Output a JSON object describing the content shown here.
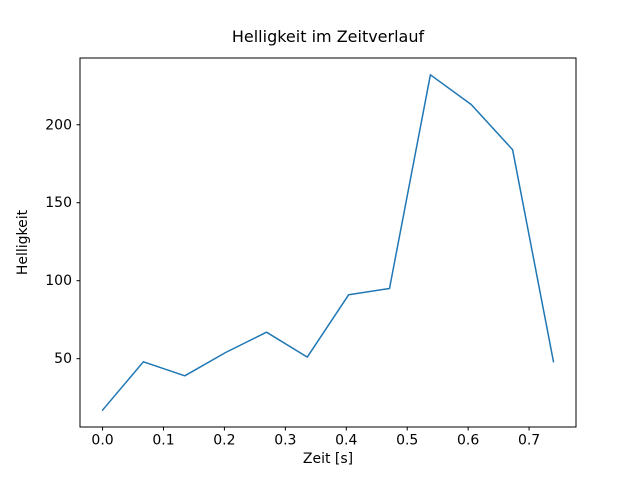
{
  "chart_data": {
    "type": "line",
    "title": "Helligkeit im Zeitverlauf",
    "xlabel": "Zeit [s]",
    "ylabel": "Helligkeit",
    "x": [
      0.0,
      0.067,
      0.135,
      0.202,
      0.269,
      0.336,
      0.404,
      0.471,
      0.538,
      0.605,
      0.673,
      0.74
    ],
    "y": [
      17,
      48,
      39,
      54,
      67,
      51,
      91,
      95,
      232,
      213,
      184,
      48
    ],
    "xticks": [
      0.0,
      0.1,
      0.2,
      0.3,
      0.4,
      0.5,
      0.6,
      0.7
    ],
    "xtick_labels": [
      "0.0",
      "0.1",
      "0.2",
      "0.3",
      "0.4",
      "0.5",
      "0.6",
      "0.7"
    ],
    "yticks": [
      50,
      100,
      150,
      200
    ],
    "ytick_labels": [
      "50",
      "100",
      "150",
      "200"
    ],
    "xlim": [
      -0.037,
      0.777
    ],
    "ylim": [
      6.2,
      242.8
    ],
    "line_color": "#1f77b4",
    "axis_color": "#000000",
    "background": "#ffffff",
    "grid": false,
    "legend": null
  }
}
